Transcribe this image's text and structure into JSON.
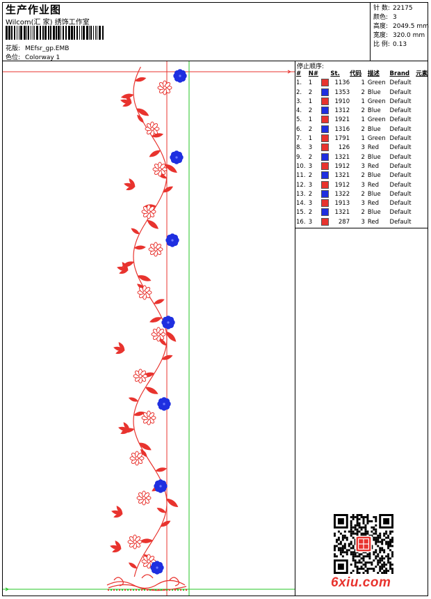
{
  "header": {
    "title": "生产作业图",
    "studio": "Wilcom(汇 家) 绣饰工作室",
    "design_label": "花版:",
    "design_file": "MEfsr_gp.EMB",
    "colorway_label": "色位:",
    "colorway": "Colorway 1"
  },
  "stats": [
    {
      "label": "针 数:",
      "value": "22175"
    },
    {
      "label": "颜色:",
      "value": "3"
    },
    {
      "label": "高度:",
      "value": "2049.5 mm"
    },
    {
      "label": "宽度:",
      "value": "320.0 mm"
    },
    {
      "label": "比 例:",
      "value": "0.13"
    }
  ],
  "stop_sequence": {
    "title": "停止顺序:",
    "columns": [
      "#",
      "N#",
      "St.",
      "代码",
      "描述",
      "Brand",
      "元素"
    ],
    "rows": [
      {
        "idx": "1.",
        "n": "1",
        "color": "#e8332e",
        "st": "1136",
        "code": "1",
        "desc": "Green",
        "brand": "Default"
      },
      {
        "idx": "2.",
        "n": "2",
        "color": "#1f2fe0",
        "st": "1353",
        "code": "2",
        "desc": "Blue",
        "brand": "Default"
      },
      {
        "idx": "3.",
        "n": "1",
        "color": "#e8332e",
        "st": "1910",
        "code": "1",
        "desc": "Green",
        "brand": "Default"
      },
      {
        "idx": "4.",
        "n": "2",
        "color": "#1f2fe0",
        "st": "1312",
        "code": "2",
        "desc": "Blue",
        "brand": "Default"
      },
      {
        "idx": "5.",
        "n": "1",
        "color": "#e8332e",
        "st": "1921",
        "code": "1",
        "desc": "Green",
        "brand": "Default"
      },
      {
        "idx": "6.",
        "n": "2",
        "color": "#1f2fe0",
        "st": "1316",
        "code": "2",
        "desc": "Blue",
        "brand": "Default"
      },
      {
        "idx": "7.",
        "n": "1",
        "color": "#e8332e",
        "st": "1791",
        "code": "1",
        "desc": "Green",
        "brand": "Default"
      },
      {
        "idx": "8.",
        "n": "3",
        "color": "#e8332e",
        "st": "126",
        "code": "3",
        "desc": "Red",
        "brand": "Default"
      },
      {
        "idx": "9.",
        "n": "2",
        "color": "#1f2fe0",
        "st": "1321",
        "code": "2",
        "desc": "Blue",
        "brand": "Default"
      },
      {
        "idx": "10.",
        "n": "3",
        "color": "#e8332e",
        "st": "1912",
        "code": "3",
        "desc": "Red",
        "brand": "Default"
      },
      {
        "idx": "11.",
        "n": "2",
        "color": "#1f2fe0",
        "st": "1321",
        "code": "2",
        "desc": "Blue",
        "brand": "Default"
      },
      {
        "idx": "12.",
        "n": "3",
        "color": "#e8332e",
        "st": "1912",
        "code": "3",
        "desc": "Red",
        "brand": "Default"
      },
      {
        "idx": "13.",
        "n": "2",
        "color": "#1f2fe0",
        "st": "1322",
        "code": "2",
        "desc": "Blue",
        "brand": "Default"
      },
      {
        "idx": "14.",
        "n": "3",
        "color": "#e8332e",
        "st": "1913",
        "code": "3",
        "desc": "Red",
        "brand": "Default"
      },
      {
        "idx": "15.",
        "n": "2",
        "color": "#1f2fe0",
        "st": "1321",
        "code": "2",
        "desc": "Blue",
        "brand": "Default"
      },
      {
        "idx": "16.",
        "n": "3",
        "color": "#e8332e",
        "st": "287",
        "code": "3",
        "desc": "Red",
        "brand": "Default"
      }
    ]
  },
  "colors": {
    "red": "#e8332e",
    "blue": "#1f2fe0",
    "green_guide": "#23c423",
    "red_guide": "#e8332e"
  },
  "icons": [
    "barcode-icon",
    "qr-code-icon",
    "seal-icon"
  ],
  "watermark": "6xiu.com"
}
